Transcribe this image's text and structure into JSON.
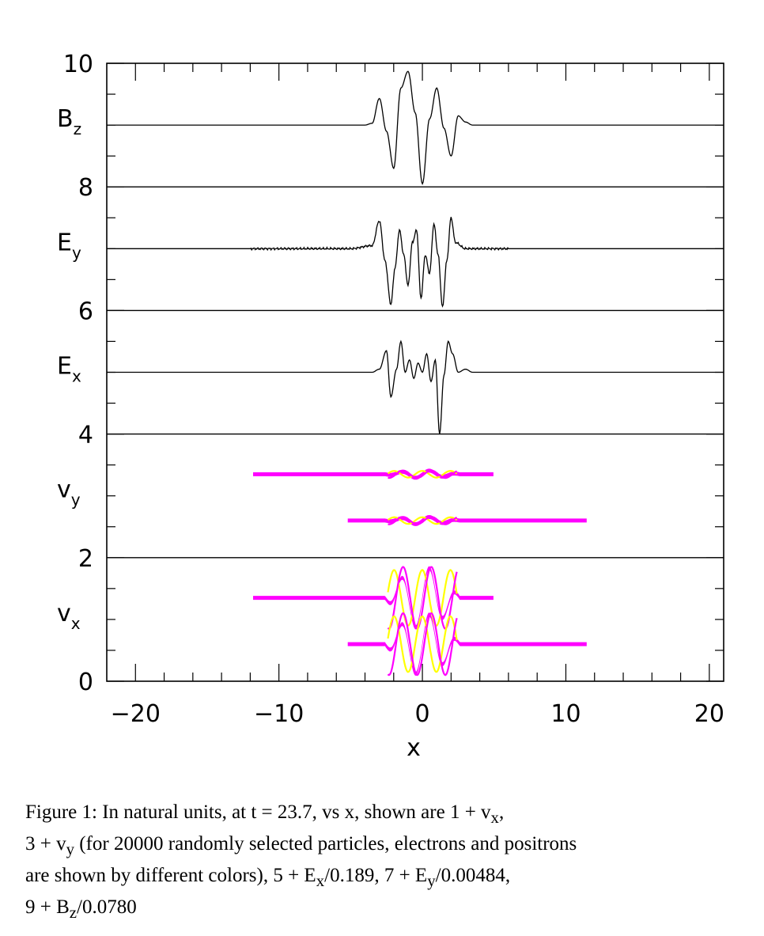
{
  "chart_data": {
    "type": "line",
    "xlabel": "x",
    "xlim": [
      -22,
      21
    ],
    "ylim": [
      0,
      10
    ],
    "x_ticks": [
      -20,
      -10,
      0,
      10,
      20
    ],
    "x_tick_labels": [
      "−20",
      "−10",
      "0",
      "10",
      "20"
    ],
    "y_ticks": [
      0,
      2,
      4,
      6,
      8,
      10
    ],
    "y_tick_labels": [
      "0",
      "2",
      "4",
      "6",
      "8",
      "10"
    ],
    "separators": [
      2,
      4,
      6,
      8
    ],
    "grid": false,
    "colors": {
      "electrons": "#ff00ff",
      "positrons": "#ffff00",
      "line": "#000000"
    },
    "panels": [
      {
        "main": "B",
        "sub": "z",
        "baseline": 9
      },
      {
        "main": "E",
        "sub": "y",
        "baseline": 7
      },
      {
        "main": "E",
        "sub": "x",
        "baseline": 5
      },
      {
        "main": "v",
        "sub": "y",
        "baseline": 3
      },
      {
        "main": "v",
        "sub": "x",
        "baseline": 1
      }
    ],
    "series": [
      {
        "panel": "Bz",
        "x": [
          -22,
          -4,
          -3.5,
          -3.0,
          -2.5,
          -2.0,
          -1.5,
          -1.0,
          -0.5,
          0.0,
          0.5,
          1.0,
          1.5,
          2.0,
          2.5,
          3.0,
          3.5,
          4,
          21
        ],
        "y": [
          9.0,
          9.0,
          9.03,
          9.43,
          8.9,
          8.3,
          9.6,
          9.87,
          9.2,
          8.05,
          9.1,
          9.6,
          8.95,
          8.5,
          9.15,
          9.05,
          9.0,
          9.0,
          9.0
        ]
      },
      {
        "panel": "Ey",
        "x": [
          -22,
          -5,
          -3.5,
          -3.0,
          -2.6,
          -2.2,
          -1.9,
          -1.6,
          -1.3,
          -1.0,
          -0.7,
          -0.4,
          -0.1,
          0.2,
          0.5,
          0.8,
          1.1,
          1.4,
          1.7,
          2.0,
          2.3,
          3.0,
          5,
          21
        ],
        "y": [
          7.0,
          7.0,
          7.05,
          7.45,
          6.8,
          6.1,
          6.7,
          7.3,
          6.9,
          6.4,
          7.1,
          7.3,
          6.2,
          6.9,
          6.6,
          7.4,
          6.9,
          6.05,
          6.8,
          7.5,
          7.1,
          7.0,
          7.0,
          7.0
        ]
      },
      {
        "panel": "Ex",
        "x": [
          -22,
          -4,
          -3.5,
          -3.0,
          -2.5,
          -2.2,
          -1.8,
          -1.5,
          -1.2,
          -0.9,
          -0.6,
          -0.3,
          0.0,
          0.3,
          0.6,
          0.9,
          1.2,
          1.5,
          1.8,
          2.1,
          2.5,
          3.0,
          3.5,
          21
        ],
        "y": [
          5.0,
          5.0,
          5.0,
          5.05,
          5.35,
          4.6,
          5.05,
          5.5,
          5.0,
          5.2,
          4.9,
          5.15,
          5.0,
          5.3,
          4.85,
          5.2,
          4.0,
          4.95,
          5.5,
          5.3,
          5.0,
          5.05,
          5.0,
          5.0
        ]
      }
    ],
    "particles": [
      {
        "panel": "vy",
        "x_range": [
          -11.8,
          5.0
        ],
        "center": 3.35,
        "bump": 0.06
      },
      {
        "panel": "vy",
        "x_range": [
          -5.2,
          11.5
        ],
        "center": 2.6,
        "bump": 0.06
      },
      {
        "panel": "vx",
        "x_range": [
          -11.8,
          5.0
        ],
        "center": 1.35,
        "bump": 0.5
      },
      {
        "panel": "vx",
        "x_range": [
          -5.2,
          11.5
        ],
        "center": 0.6,
        "bump": 0.5
      }
    ]
  },
  "caption": {
    "line1": "Figure 1: In natural units, at t = 23.7, vs x, shown are 1 + v",
    "line1_sub": "x",
    "line1_end": ",",
    "line2_start": "3 + v",
    "line2_sub": "y",
    "line2_rest": " (for 20000 randomly selected particles, electrons and positrons",
    "line3a": "are shown by different colors), 5 + E",
    "line3a_sub": "x",
    "line3b": "/0.189, 7 + E",
    "line3b_sub": "y",
    "line3c": "/0.00484,",
    "line4a": "9 + B",
    "line4a_sub": "z",
    "line4b": "/0.0780"
  }
}
